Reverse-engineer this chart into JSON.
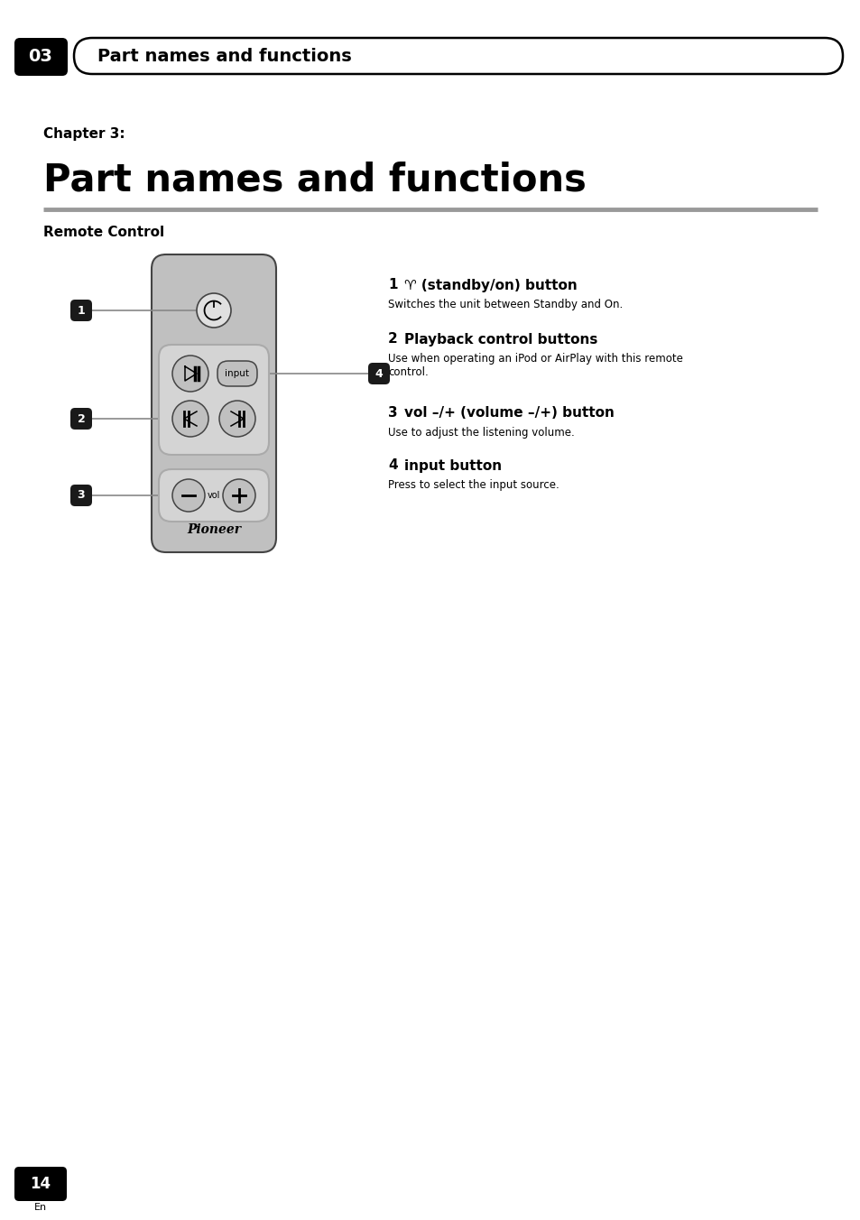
{
  "page_bg": "#ffffff",
  "header_bg": "#000000",
  "header_text": "03",
  "header_label": "Part names and functions",
  "chapter_label": "Chapter 3:",
  "chapter_title": "Part names and functions",
  "section_title": "Remote Control",
  "item1_num": "1",
  "item1_title_a": "♈ (standby/on) button",
  "item1_desc": "Switches the unit between Standby and On.",
  "item2_num": "2",
  "item2_title": "Playback control buttons",
  "item2_desc1": "Use when operating an iPod or AirPlay with this remote",
  "item2_desc2": "control.",
  "item3_num": "3",
  "item3_title": "vol –/+ (volume –/+) button",
  "item3_desc": "Use to adjust the listening volume.",
  "item4_num": "4",
  "item4_title": "input button",
  "item4_desc": "Press to select the input source.",
  "remote_bg": "#c0c0c0",
  "remote_border": "#444444",
  "button_fill": "#d8d8d8",
  "button_border": "#444444",
  "group_fill": "#d0d0d0",
  "group_border": "#888888",
  "label_bg": "#1a1a1a",
  "label_fg": "#ffffff",
  "line_color": "#888888",
  "page_number": "14",
  "page_lang": "En",
  "divider_color": "#999999"
}
